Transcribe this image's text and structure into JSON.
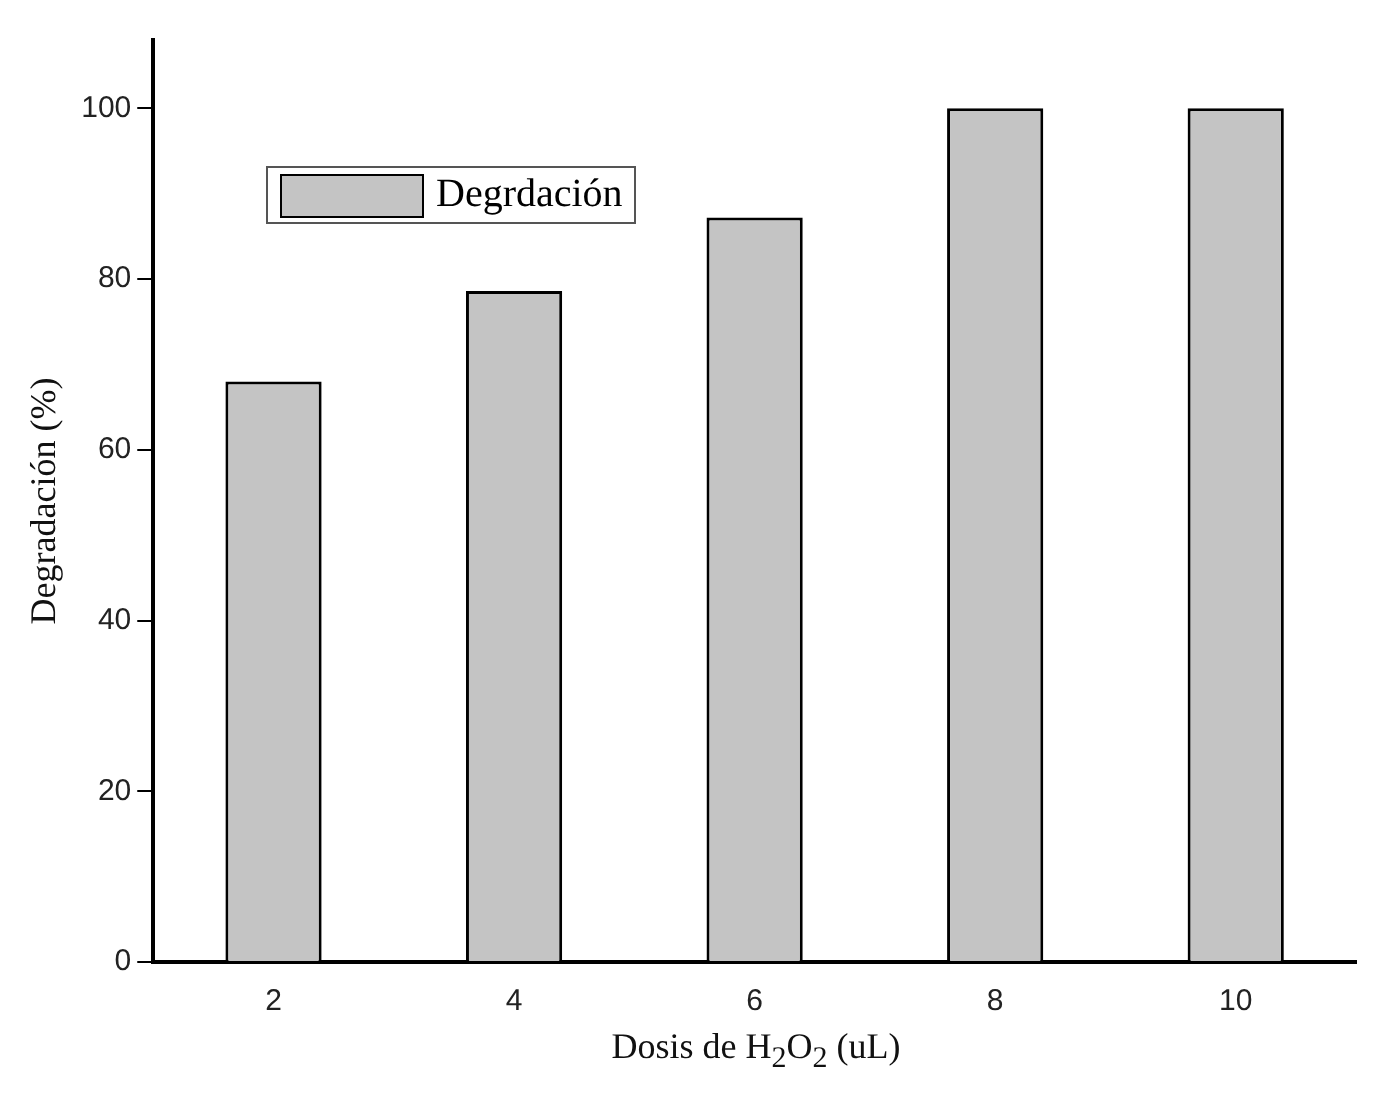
{
  "chart_data": {
    "type": "bar",
    "xlabel": "Dosis de H$_{2}$O$_{2}$ (uL)",
    "ylabel": "Degradación (%)",
    "categories": [
      "2",
      "4",
      "6",
      "8",
      "10"
    ],
    "series": [
      {
        "name": "Degrdación",
        "color": "#c4c4c4",
        "values": [
          68,
          78.6,
          87.2,
          100,
          100
        ]
      }
    ],
    "ylim": [
      0,
      108
    ],
    "yticks": [
      0,
      20,
      40,
      60,
      80,
      100
    ],
    "legend": "top left",
    "grid": false
  }
}
